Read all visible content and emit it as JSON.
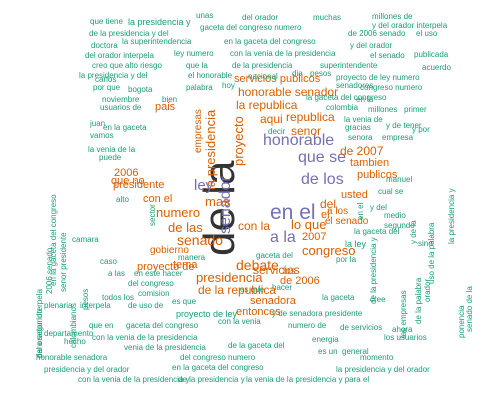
{
  "palette": {
    "level1": "#1a9e77",
    "level2": "#d95f02",
    "level3": "#7570b3",
    "level4": "#333333"
  },
  "wordcloud": {
    "words": [
      {
        "text": "de la",
        "level": 4
      },
      {
        "text": "en el",
        "level": 3
      },
      {
        "text": "que se",
        "level": 3
      },
      {
        "text": "de los",
        "level": 3
      },
      {
        "text": "a la",
        "level": 3
      },
      {
        "text": "honorable",
        "level": 3
      },
      {
        "text": "senador",
        "level": 3
      },
      {
        "text": "la presidencia",
        "level": 2
      },
      {
        "text": "ley",
        "level": 3
      },
      {
        "text": "senado",
        "level": 2
      },
      {
        "text": "proyecto",
        "level": 2
      },
      {
        "text": "numero",
        "level": 2
      },
      {
        "text": "mas",
        "level": 2
      },
      {
        "text": "de las",
        "level": 2
      },
      {
        "text": "debate",
        "level": 2
      },
      {
        "text": "congreso",
        "level": 2
      },
      {
        "text": "presidencia",
        "level": 2
      },
      {
        "text": "del",
        "level": 2
      },
      {
        "text": "con la",
        "level": 2
      },
      {
        "text": "lo que",
        "level": 2
      },
      {
        "text": "el",
        "level": 2
      },
      {
        "text": "republica",
        "level": 2
      },
      {
        "text": "la republica",
        "level": 2
      },
      {
        "text": "aqui",
        "level": 2
      },
      {
        "text": "senor",
        "level": 2
      },
      {
        "text": "de la republica",
        "level": 2
      },
      {
        "text": "honorable senador",
        "level": 2
      },
      {
        "text": "servicios publicos",
        "level": 2
      },
      {
        "text": "2007",
        "level": 2
      },
      {
        "text": "de 2007",
        "level": 2
      },
      {
        "text": "tambien",
        "level": 2
      },
      {
        "text": "publicos",
        "level": 2
      },
      {
        "text": "usted",
        "level": 2
      },
      {
        "text": "servicios",
        "level": 2
      },
      {
        "text": "tema",
        "level": 2
      },
      {
        "text": "que no",
        "level": 2
      },
      {
        "text": "presidente",
        "level": 2
      },
      {
        "text": "con el",
        "level": 2
      },
      {
        "text": "2006",
        "level": 2
      },
      {
        "text": "a los",
        "level": 2
      },
      {
        "text": "el senado",
        "level": 2
      },
      {
        "text": "de 2006",
        "level": 2
      },
      {
        "text": "entonces",
        "level": 2
      },
      {
        "text": "senadora",
        "level": 2
      },
      {
        "text": "proyecto de",
        "level": 2
      },
      {
        "text": "gobierno",
        "level": 2
      },
      {
        "text": "pais",
        "level": 2
      },
      {
        "text": "empresas",
        "level": 2
      },
      {
        "text": "los",
        "level": 2
      },
      {
        "text": "la ley",
        "level": 1
      },
      {
        "text": "que tiene",
        "level": 1
      },
      {
        "text": "la presidencia y",
        "level": 1
      },
      {
        "text": "unas",
        "level": 1
      },
      {
        "text": "del orador",
        "level": 1
      },
      {
        "text": "muchas",
        "level": 1
      },
      {
        "text": "millones de",
        "level": 1
      },
      {
        "text": "y del orador interpela",
        "level": 1
      },
      {
        "text": "de la presidencia y del",
        "level": 1
      },
      {
        "text": "gaceta del congreso numero",
        "level": 1
      },
      {
        "text": "de 2006 senado",
        "level": 1
      },
      {
        "text": "el uso",
        "level": 1
      },
      {
        "text": "doctora",
        "level": 1
      },
      {
        "text": "la superintendencia",
        "level": 1
      },
      {
        "text": "en la gaceta del congreso",
        "level": 1
      },
      {
        "text": "y del orador",
        "level": 1
      },
      {
        "text": "del orador interpela",
        "level": 1
      },
      {
        "text": "ley numero",
        "level": 1
      },
      {
        "text": "con la venia de la presidencia",
        "level": 1
      },
      {
        "text": "el senado",
        "level": 1
      },
      {
        "text": "publicada",
        "level": 1
      },
      {
        "text": "creo que",
        "level": 1
      },
      {
        "text": "alto riesgo",
        "level": 1
      },
      {
        "text": "que la",
        "level": 1
      },
      {
        "text": "de la presidencia",
        "level": 1
      },
      {
        "text": "superintendente",
        "level": 1
      },
      {
        "text": "acuerdo",
        "level": 1
      },
      {
        "text": "la presidencia y del",
        "level": 1
      },
      {
        "text": "el honorable",
        "level": 1
      },
      {
        "text": "nacional",
        "level": 1
      },
      {
        "text": "dia",
        "level": 1
      },
      {
        "text": "pesos",
        "level": 1
      },
      {
        "text": "proyecto de ley numero",
        "level": 1
      },
      {
        "text": "por que",
        "level": 1
      },
      {
        "text": "bogota",
        "level": 1
      },
      {
        "text": "carlos",
        "level": 1
      },
      {
        "text": "palabra",
        "level": 1
      },
      {
        "text": "hoy",
        "level": 1
      },
      {
        "text": "senadores",
        "level": 1
      },
      {
        "text": "congreso numero",
        "level": 1
      },
      {
        "text": "noviembre",
        "level": 1
      },
      {
        "text": "la gaceta del congreso",
        "level": 1
      },
      {
        "text": "juan",
        "level": 1
      },
      {
        "text": "en la gaceta",
        "level": 1
      },
      {
        "text": "usuarios de",
        "level": 1
      },
      {
        "text": "en la",
        "level": 1
      },
      {
        "text": "colombia",
        "level": 1
      },
      {
        "text": "millones",
        "level": 1
      },
      {
        "text": "primer",
        "level": 1
      },
      {
        "text": "la venia de",
        "level": 1
      },
      {
        "text": "y de tener",
        "level": 1
      },
      {
        "text": "y por",
        "level": 1
      },
      {
        "text": "gracias",
        "level": 1
      },
      {
        "text": "senora",
        "level": 1
      },
      {
        "text": "empresa",
        "level": 1
      },
      {
        "text": "decir",
        "level": 1
      },
      {
        "text": "vamos",
        "level": 1
      },
      {
        "text": "la venia de la",
        "level": 1
      },
      {
        "text": "puede",
        "level": 1
      },
      {
        "text": "bien",
        "level": 1
      },
      {
        "text": "la gaceta del",
        "level": 1
      },
      {
        "text": "es que",
        "level": 1
      },
      {
        "text": "cual se",
        "level": 1
      },
      {
        "text": "y del",
        "level": 1
      },
      {
        "text": "manuel",
        "level": 1
      },
      {
        "text": "gaceta del",
        "level": 1
      },
      {
        "text": "medio",
        "level": 1
      },
      {
        "text": "segundo",
        "level": 1
      },
      {
        "text": "alto",
        "level": 1
      },
      {
        "text": "camara",
        "level": 1
      },
      {
        "text": "sino",
        "level": 1
      },
      {
        "text": "manera",
        "level": 1
      },
      {
        "text": "caso",
        "level": 1
      },
      {
        "text": "por la",
        "level": 1
      },
      {
        "text": "a las",
        "level": 1
      },
      {
        "text": "en este hacer",
        "level": 1
      },
      {
        "text": "del congreso",
        "level": 1
      },
      {
        "text": "comision",
        "level": 1
      },
      {
        "text": "todos los",
        "level": 1
      },
      {
        "text": "la gaceta",
        "level": 1
      },
      {
        "text": "cree",
        "level": 1
      },
      {
        "text": "hacer",
        "level": 1
      },
      {
        "text": "plenaria",
        "level": 1
      },
      {
        "text": "interpela",
        "level": 1
      },
      {
        "text": "de uso de",
        "level": 1
      },
      {
        "text": "proyecto de ley",
        "level": 1
      },
      {
        "text": "es que",
        "level": 1
      },
      {
        "text": "honorable senadora",
        "level": 1
      },
      {
        "text": "y de senadora presidente",
        "level": 1
      },
      {
        "text": "que en",
        "level": 1
      },
      {
        "text": "gaceta del congreso",
        "level": 1
      },
      {
        "text": "con la venia",
        "level": 1
      },
      {
        "text": "numero de",
        "level": 1
      },
      {
        "text": "de servicios",
        "level": 1
      },
      {
        "text": "ahora",
        "level": 1
      },
      {
        "text": "departamento",
        "level": 1
      },
      {
        "text": "hecho",
        "level": 1
      },
      {
        "text": "con la venia de la presidencia",
        "level": 1
      },
      {
        "text": "energia",
        "level": 1
      },
      {
        "text": "los usuarios",
        "level": 1
      },
      {
        "text": "venia de la presidencia",
        "level": 1
      },
      {
        "text": "de la gaceta del",
        "level": 1
      },
      {
        "text": "es un",
        "level": 1
      },
      {
        "text": "general",
        "level": 1
      },
      {
        "text": "del congreso numero",
        "level": 1
      },
      {
        "text": "momento",
        "level": 1
      },
      {
        "text": "presidencia y del orador",
        "level": 1
      },
      {
        "text": "en la gaceta del congreso",
        "level": 1
      },
      {
        "text": "la presidencia y del orador",
        "level": 1
      },
      {
        "text": "con la venia de la presidencia y",
        "level": 1
      },
      {
        "text": "de la presidencia y",
        "level": 1
      },
      {
        "text": "la venia de la presidencia y para el",
        "level": 1
      },
      {
        "text": "sector",
        "level": 1
      },
      {
        "text": "en el",
        "level": 1
      },
      {
        "text": "de la presidencia y",
        "level": 1
      },
      {
        "text": "senado de la",
        "level": 1
      },
      {
        "text": "uso de la palabra",
        "level": 1
      },
      {
        "text": "la presidencia y",
        "level": 1
      },
      {
        "text": "y de la",
        "level": 1
      },
      {
        "text": "de la palabra",
        "level": 1
      },
      {
        "text": "orador",
        "level": 1
      },
      {
        "text": "las empresas",
        "level": 1
      },
      {
        "text": "en la gaceta del congreso",
        "level": 1
      },
      {
        "text": "del orador interpela",
        "level": 1
      },
      {
        "text": "senor presidente",
        "level": 1
      },
      {
        "text": "2006 senado",
        "level": 1
      },
      {
        "text": "pesos",
        "level": 1
      },
      {
        "text": "colombianos",
        "level": 1
      },
      {
        "text": "para segundo",
        "level": 1
      },
      {
        "text": "ponencia",
        "level": 1
      }
    ]
  }
}
